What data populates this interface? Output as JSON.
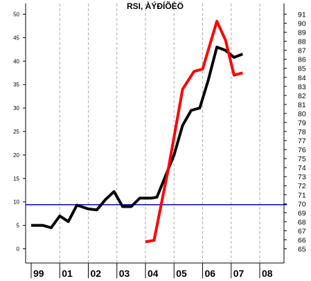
{
  "chart_data": {
    "type": "line",
    "title": "RSI, ÀÝÐÍÕÈÖ",
    "x_categories": [
      "99",
      "01",
      "02",
      "03",
      "04",
      "05",
      "06",
      "07",
      "08"
    ],
    "left_axis": {
      "ylim": [
        0,
        50
      ],
      "ticks": [
        0,
        5,
        10,
        15,
        20,
        25,
        30,
        35,
        40,
        45,
        50
      ]
    },
    "right_axis": {
      "ylim": [
        65,
        91
      ],
      "ticks": [
        65,
        66,
        67,
        68,
        69,
        70,
        71,
        72,
        73,
        74,
        75,
        76,
        77,
        78,
        79,
        80,
        81,
        82,
        83,
        84,
        85,
        86,
        87,
        88,
        89,
        90,
        91
      ]
    },
    "horizontal_line": {
      "value": 9.4,
      "axis": "left",
      "color": "#0000cc"
    },
    "grid": "vertical-dashed",
    "series": [
      {
        "color": "#000000",
        "axis": "left",
        "points": [
          [
            0.0,
            5.0
          ],
          [
            0.4,
            5.0
          ],
          [
            0.7,
            4.5
          ],
          [
            1.0,
            7.0
          ],
          [
            1.3,
            5.8
          ],
          [
            1.6,
            9.3
          ],
          [
            2.0,
            8.5
          ],
          [
            2.3,
            8.3
          ],
          [
            2.6,
            10.5
          ],
          [
            2.9,
            12.2
          ],
          [
            3.2,
            9.0
          ],
          [
            3.5,
            9.0
          ],
          [
            3.8,
            10.8
          ],
          [
            4.2,
            10.8
          ],
          [
            4.4,
            11.0
          ],
          [
            4.7,
            15.5
          ],
          [
            5.0,
            20.0
          ],
          [
            5.3,
            26.3
          ],
          [
            5.6,
            29.5
          ],
          [
            5.9,
            30.0
          ],
          [
            6.2,
            36.0
          ],
          [
            6.5,
            43.0
          ],
          [
            6.8,
            42.3
          ],
          [
            7.1,
            40.8
          ],
          [
            7.4,
            41.5
          ]
        ]
      },
      {
        "color": "#ff0000",
        "axis": "left",
        "points": [
          [
            4.0,
            1.5
          ],
          [
            4.3,
            1.8
          ],
          [
            4.8,
            17.0
          ],
          [
            5.3,
            34.0
          ],
          [
            5.7,
            37.8
          ],
          [
            6.0,
            38.3
          ],
          [
            6.5,
            48.5
          ],
          [
            6.8,
            44.5
          ],
          [
            7.1,
            37.0
          ],
          [
            7.4,
            37.5
          ]
        ]
      }
    ]
  }
}
